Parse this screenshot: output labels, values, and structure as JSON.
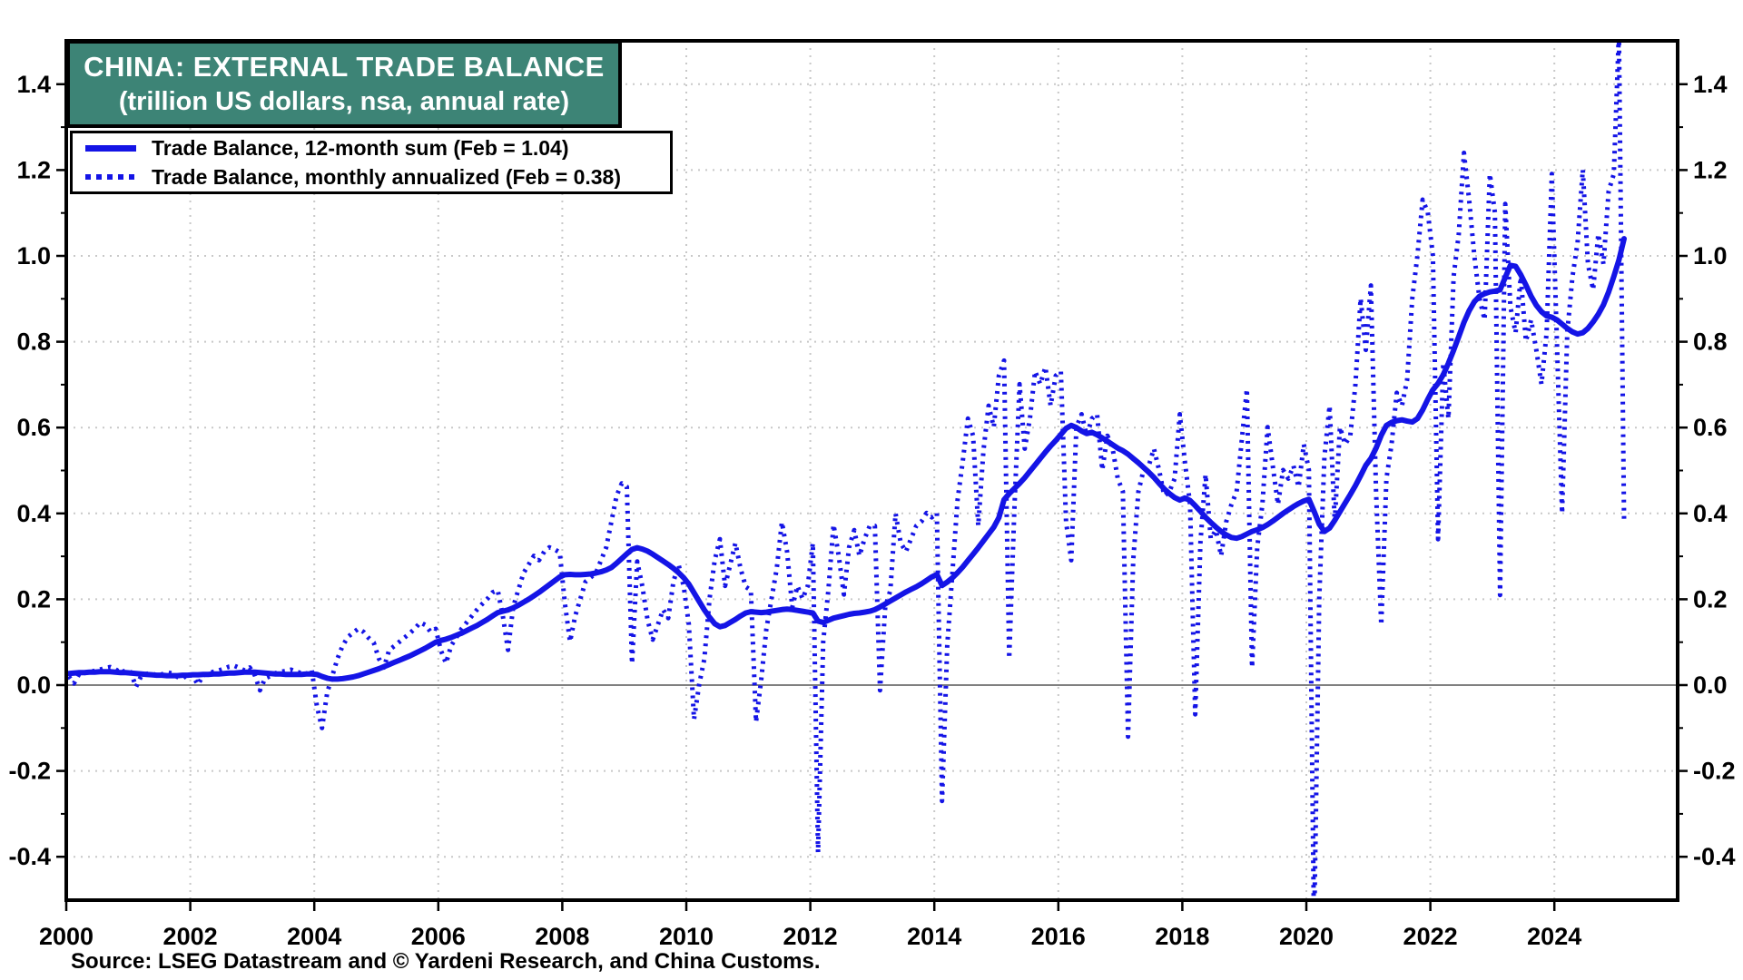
{
  "header": {
    "title": "CHINA: EXTERNAL TRADE BALANCE",
    "subtitle": "(trillion US dollars, nsa, annual rate)"
  },
  "legend": {
    "items": [
      {
        "label": "Trade Balance, 12-month sum (Feb = 1.04)",
        "style": "solid"
      },
      {
        "label": "Trade Balance, monthly annualized (Feb = 0.38)",
        "style": "dotted"
      }
    ]
  },
  "source": "Source: LSEG Datastream and © Yardeni Research, and China Customs.",
  "colors": {
    "series_blue": "#1414e6",
    "title_bg": "#3d8476",
    "grid": "#c8c8c8",
    "zero_line": "#808080",
    "frame": "#000000",
    "text": "#000000"
  },
  "axes": {
    "y_range": [
      -0.5,
      1.5
    ],
    "x_range_years": [
      2000,
      2026
    ],
    "y_tick_values": [
      -0.4,
      -0.2,
      0.0,
      0.2,
      0.4,
      0.6,
      0.8,
      1.0,
      1.2,
      1.4
    ],
    "y_tick_labels": [
      "-0.4",
      "-0.2",
      "0.0",
      "0.2",
      "0.4",
      "0.6",
      "0.8",
      "1.0",
      "1.2",
      "1.4"
    ],
    "y_minor_values": [
      -0.3,
      -0.1,
      0.1,
      0.3,
      0.5,
      0.7,
      0.9,
      1.1,
      1.3
    ],
    "y_gridline_values": [
      -0.4,
      -0.2,
      0.2,
      0.4,
      0.6,
      0.8,
      1.0,
      1.2,
      1.4
    ],
    "x_tick_years": [
      2000,
      2002,
      2004,
      2006,
      2008,
      2010,
      2012,
      2014,
      2016,
      2018,
      2020,
      2022,
      2024
    ],
    "x_gridline_years": [
      2002,
      2004,
      2006,
      2008,
      2010,
      2012,
      2014,
      2016,
      2018,
      2020,
      2022,
      2024
    ],
    "grid_style": "dotted",
    "zero_line": "solid"
  },
  "chart_data": {
    "type": "line",
    "title": "CHINA: EXTERNAL TRADE BALANCE",
    "subtitle": "(trillion US dollars, nsa, annual rate)",
    "ylabel": "trillion US dollars",
    "ylim": [
      -0.5,
      1.5
    ],
    "x_unit": "monthly",
    "x_start": "2000-01",
    "x_end": "2025-02",
    "legend_position": "top-left",
    "series": [
      {
        "name": "Trade Balance, 12-month sum",
        "style": "solid",
        "latest_label": "Feb = 1.04",
        "values": [
          0.027,
          0.028,
          0.029,
          0.029,
          0.03,
          0.03,
          0.031,
          0.031,
          0.031,
          0.03,
          0.029,
          0.029,
          0.028,
          0.027,
          0.026,
          0.025,
          0.024,
          0.023,
          0.023,
          0.022,
          0.022,
          0.022,
          0.023,
          0.023,
          0.024,
          0.024,
          0.025,
          0.025,
          0.026,
          0.026,
          0.027,
          0.028,
          0.028,
          0.029,
          0.03,
          0.03,
          0.03,
          0.029,
          0.028,
          0.027,
          0.026,
          0.026,
          0.025,
          0.025,
          0.025,
          0.025,
          0.026,
          0.026,
          0.025,
          0.02,
          0.016,
          0.014,
          0.014,
          0.015,
          0.017,
          0.019,
          0.022,
          0.026,
          0.03,
          0.034,
          0.038,
          0.043,
          0.048,
          0.053,
          0.058,
          0.063,
          0.068,
          0.074,
          0.08,
          0.086,
          0.093,
          0.1,
          0.104,
          0.107,
          0.111,
          0.116,
          0.121,
          0.127,
          0.133,
          0.139,
          0.146,
          0.153,
          0.161,
          0.169,
          0.172,
          0.175,
          0.18,
          0.186,
          0.193,
          0.2,
          0.208,
          0.216,
          0.225,
          0.234,
          0.243,
          0.252,
          0.257,
          0.258,
          0.257,
          0.257,
          0.258,
          0.259,
          0.261,
          0.264,
          0.268,
          0.274,
          0.284,
          0.295,
          0.306,
          0.316,
          0.32,
          0.317,
          0.312,
          0.305,
          0.297,
          0.289,
          0.281,
          0.272,
          0.262,
          0.25,
          0.235,
          0.215,
          0.195,
          0.175,
          0.158,
          0.143,
          0.136,
          0.139,
          0.146,
          0.153,
          0.161,
          0.168,
          0.171,
          0.17,
          0.169,
          0.17,
          0.172,
          0.174,
          0.176,
          0.177,
          0.176,
          0.174,
          0.172,
          0.17,
          0.168,
          0.149,
          0.146,
          0.151,
          0.156,
          0.159,
          0.162,
          0.165,
          0.167,
          0.168,
          0.17,
          0.172,
          0.176,
          0.182,
          0.189,
          0.196,
          0.203,
          0.21,
          0.217,
          0.223,
          0.229,
          0.236,
          0.244,
          0.252,
          0.258,
          0.232,
          0.24,
          0.25,
          0.262,
          0.275,
          0.29,
          0.305,
          0.32,
          0.336,
          0.352,
          0.368,
          0.39,
          0.432,
          0.446,
          0.458,
          0.47,
          0.483,
          0.498,
          0.513,
          0.528,
          0.543,
          0.557,
          0.57,
          0.584,
          0.598,
          0.605,
          0.6,
          0.592,
          0.586,
          0.589,
          0.583,
          0.576,
          0.568,
          0.56,
          0.552,
          0.546,
          0.538,
          0.528,
          0.518,
          0.507,
          0.496,
          0.484,
          0.47,
          0.457,
          0.446,
          0.437,
          0.431,
          0.436,
          0.43,
          0.418,
          0.405,
          0.391,
          0.379,
          0.368,
          0.358,
          0.35,
          0.344,
          0.342,
          0.346,
          0.352,
          0.358,
          0.362,
          0.367,
          0.374,
          0.382,
          0.391,
          0.4,
          0.408,
          0.416,
          0.423,
          0.429,
          0.433,
          0.405,
          0.375,
          0.358,
          0.366,
          0.384,
          0.404,
          0.424,
          0.444,
          0.465,
          0.488,
          0.512,
          0.528,
          0.552,
          0.582,
          0.605,
          0.612,
          0.616,
          0.618,
          0.615,
          0.613,
          0.621,
          0.641,
          0.666,
          0.688,
          0.703,
          0.723,
          0.75,
          0.78,
          0.812,
          0.845,
          0.872,
          0.893,
          0.906,
          0.912,
          0.916,
          0.918,
          0.921,
          0.95,
          0.978,
          0.976,
          0.956,
          0.932,
          0.906,
          0.885,
          0.87,
          0.86,
          0.857,
          0.851,
          0.841,
          0.831,
          0.823,
          0.818,
          0.821,
          0.831,
          0.846,
          0.864,
          0.886,
          0.916,
          0.952,
          0.99,
          1.04
        ]
      },
      {
        "name": "Trade Balance, monthly annualized",
        "style": "dotted",
        "latest_label": "Feb = 0.38",
        "values": [
          0.02,
          0.004,
          0.026,
          0.028,
          0.031,
          0.033,
          0.036,
          0.04,
          0.042,
          0.037,
          0.029,
          0.034,
          0.03,
          -0.004,
          0.021,
          0.026,
          0.028,
          0.022,
          0.025,
          0.03,
          0.027,
          0.019,
          0.015,
          0.026,
          0.021,
          0.001,
          0.023,
          0.027,
          0.031,
          0.034,
          0.038,
          0.043,
          0.045,
          0.04,
          0.034,
          0.041,
          0.023,
          -0.012,
          0.016,
          0.021,
          0.028,
          0.031,
          0.033,
          0.036,
          0.031,
          0.028,
          0.026,
          0.036,
          -0.048,
          -0.1,
          -0.018,
          0.022,
          0.062,
          0.092,
          0.112,
          0.122,
          0.131,
          0.124,
          0.11,
          0.099,
          0.062,
          0.041,
          0.082,
          0.091,
          0.101,
          0.111,
          0.121,
          0.132,
          0.146,
          0.14,
          0.124,
          0.131,
          0.081,
          0.051,
          0.092,
          0.111,
          0.131,
          0.146,
          0.161,
          0.176,
          0.189,
          0.201,
          0.216,
          0.221,
          0.161,
          0.082,
          0.182,
          0.222,
          0.261,
          0.281,
          0.301,
          0.291,
          0.311,
          0.321,
          0.316,
          0.309,
          0.191,
          0.101,
          0.161,
          0.201,
          0.241,
          0.251,
          0.261,
          0.291,
          0.321,
          0.381,
          0.441,
          0.47,
          0.462,
          0.05,
          0.288,
          0.23,
          0.152,
          0.106,
          0.141,
          0.176,
          0.156,
          0.241,
          0.281,
          0.229,
          0.141,
          -0.08,
          0.002,
          0.061,
          0.201,
          0.291,
          0.34,
          0.231,
          0.281,
          0.331,
          0.271,
          0.229,
          0.221,
          -0.086,
          0.012,
          0.131,
          0.201,
          0.271,
          0.38,
          0.311,
          0.181,
          0.231,
          0.201,
          0.231,
          0.331,
          -0.39,
          0.101,
          0.221,
          0.374,
          0.301,
          0.211,
          0.321,
          0.361,
          0.301,
          0.341,
          0.371,
          0.371,
          -0.012,
          0.181,
          0.221,
          0.4,
          0.331,
          0.311,
          0.341,
          0.371,
          0.381,
          0.401,
          0.391,
          0.401,
          -0.27,
          0.091,
          0.261,
          0.431,
          0.521,
          0.621,
          0.581,
          0.371,
          0.546,
          0.651,
          0.601,
          0.721,
          0.756,
          0.062,
          0.411,
          0.701,
          0.551,
          0.621,
          0.731,
          0.701,
          0.741,
          0.651,
          0.721,
          0.731,
          0.381,
          0.291,
          0.601,
          0.631,
          0.581,
          0.621,
          0.631,
          0.501,
          0.581,
          0.551,
          0.481,
          0.451,
          -0.12,
          0.291,
          0.451,
          0.501,
          0.511,
          0.551,
          0.501,
          0.441,
          0.451,
          0.481,
          0.631,
          0.521,
          0.421,
          -0.068,
          0.331,
          0.491,
          0.341,
          0.361,
          0.301,
          0.381,
          0.421,
          0.451,
          0.571,
          0.69,
          0.041,
          0.321,
          0.421,
          0.601,
          0.511,
          0.421,
          0.501,
          0.481,
          0.511,
          0.461,
          0.561,
          0.501,
          -0.58,
          0.201,
          0.531,
          0.651,
          0.381,
          0.601,
          0.561,
          0.581,
          0.701,
          0.901,
          0.781,
          0.931,
          0.451,
          0.14,
          0.481,
          0.561,
          0.681,
          0.651,
          0.711,
          0.901,
          1.001,
          1.131,
          1.101,
          1.001,
          0.34,
          0.751,
          0.621,
          0.951,
          1.051,
          1.24,
          1.131,
          1.001,
          0.901,
          0.851,
          1.191,
          1.101,
          0.21,
          1.121,
          0.881,
          0.821,
          0.951,
          0.801,
          0.851,
          0.781,
          0.701,
          0.821,
          1.191,
          0.801,
          0.4,
          0.821,
          0.951,
          1.031,
          1.201,
          0.981,
          0.921,
          1.051,
          0.981,
          1.151,
          1.191,
          1.52,
          0.38
        ]
      }
    ]
  }
}
